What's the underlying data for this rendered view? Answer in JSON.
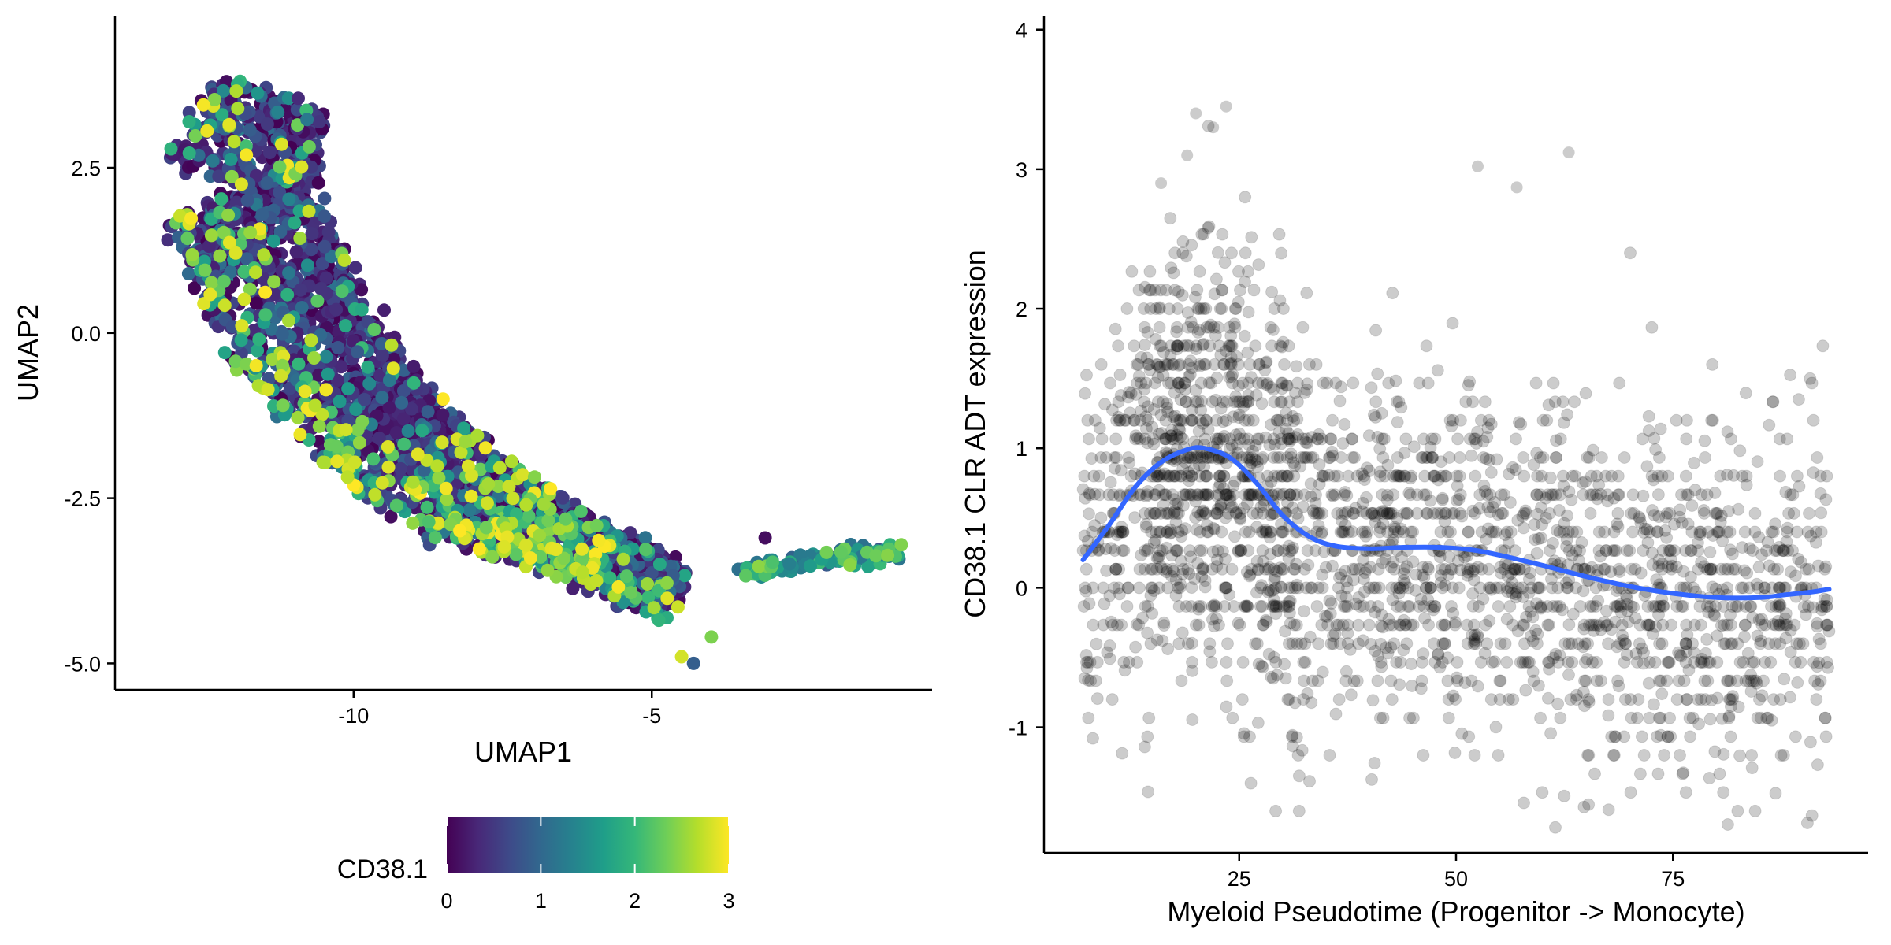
{
  "chart_data": [
    {
      "type": "scatter",
      "xlabel": "UMAP1",
      "ylabel": "UMAP2",
      "xlim": [
        -14,
        -0.3
      ],
      "ylim": [
        -5.4,
        4.8
      ],
      "x_ticks": [
        -10,
        -5
      ],
      "x_tick_labels": [
        "-10",
        "-5"
      ],
      "y_ticks": [
        2.5,
        0,
        -2.5,
        -5
      ],
      "y_tick_labels": [
        "2.5",
        "0.0",
        "-2.5",
        "-5.0"
      ],
      "grid": false,
      "colorbar": {
        "title": "CD38.1",
        "range": [
          0,
          3
        ],
        "ticks": [
          0,
          1,
          2,
          3
        ],
        "tick_labels": [
          "0",
          "1",
          "2",
          "3"
        ],
        "colormap": "viridis",
        "stops": [
          "#440154",
          "#482878",
          "#3e4a89",
          "#31688e",
          "#26828e",
          "#1f9e89",
          "#35b779",
          "#6ece58",
          "#b5de2b",
          "#fde725"
        ],
        "placement": "bottom"
      },
      "points_approx": "about 2700 cells along a curved band from (-12.5, 3.5) down to (-4.5, -4.0) then a thin branch to (-1, -3.3); color = CD38.1 mostly 0-1 with higher values (2-3) on the outer lower edge"
    },
    {
      "type": "scatter",
      "xlabel": "Myeloid Pseudotime (Progenitor -> Monocyte)",
      "ylabel": "CD38.1 CLR ADT expression",
      "xlim": [
        2.5,
        97.5
      ],
      "ylim": [
        -1.9,
        4.1
      ],
      "x_ticks": [
        25,
        50,
        75
      ],
      "x_tick_labels": [
        "25",
        "50",
        "75"
      ],
      "y_ticks": [
        -1,
        0,
        1,
        2,
        3,
        4
      ],
      "y_tick_labels": [
        "-1",
        "0",
        "1",
        "2",
        "3",
        "4"
      ],
      "grid": false,
      "point_color": "#000000",
      "point_alpha": 0.2,
      "points_approx": "about 2600 semi-transparent points for x 7-93, y mostly -1.5 to 1.5, with more spread to 3.5 near x 15-30",
      "smooth": {
        "name": "loess",
        "color": "#3366ff",
        "x": [
          7,
          10,
          13,
          16,
          19,
          21,
          24,
          27,
          30,
          33,
          36,
          40,
          44,
          48,
          52,
          56,
          60,
          65,
          70,
          75,
          80,
          85,
          88,
          91,
          93
        ],
        "y": [
          0.2,
          0.45,
          0.72,
          0.9,
          0.99,
          1.0,
          0.93,
          0.75,
          0.52,
          0.37,
          0.3,
          0.28,
          0.29,
          0.29,
          0.27,
          0.22,
          0.16,
          0.08,
          0.01,
          -0.04,
          -0.07,
          -0.07,
          -0.05,
          -0.03,
          -0.01
        ]
      }
    }
  ]
}
